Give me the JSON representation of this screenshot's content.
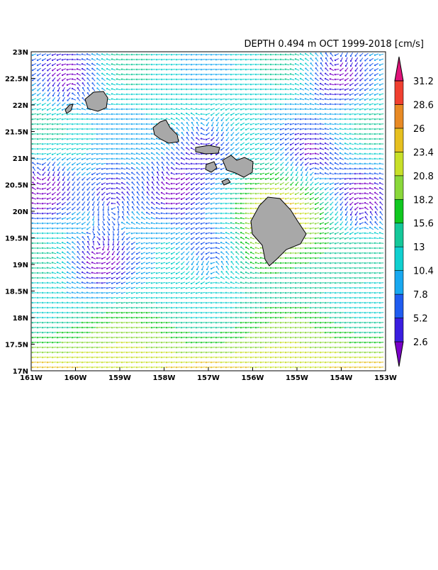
{
  "map": {
    "title": "DEPTH  0.494 m   OCT  1999-2018  [cm/s]",
    "lat_labels": [
      "23N",
      "22.5N",
      "22N",
      "21.5N",
      "21N",
      "20.5N",
      "20N",
      "19.5N",
      "19N",
      "18.5N",
      "18N",
      "17.5N",
      "17N"
    ],
    "lon_labels": [
      "161W",
      "160W",
      "159W",
      "158W",
      "157W",
      "156W",
      "155W",
      "154W",
      "153W"
    ],
    "colorbar": {
      "labels": [
        2.6,
        5.2,
        7.8,
        10.4,
        13,
        15.6,
        18.2,
        20.8,
        23.4,
        26,
        28.6,
        31.2
      ],
      "colors": [
        "#7a00c8",
        "#3a1ee0",
        "#1f5cf0",
        "#18a8f0",
        "#10d0d0",
        "#14c89a",
        "#10c820",
        "#8ad83a",
        "#c8e028",
        "#e6c020",
        "#e88a24",
        "#f04030",
        "#e0147a"
      ]
    }
  }
}
